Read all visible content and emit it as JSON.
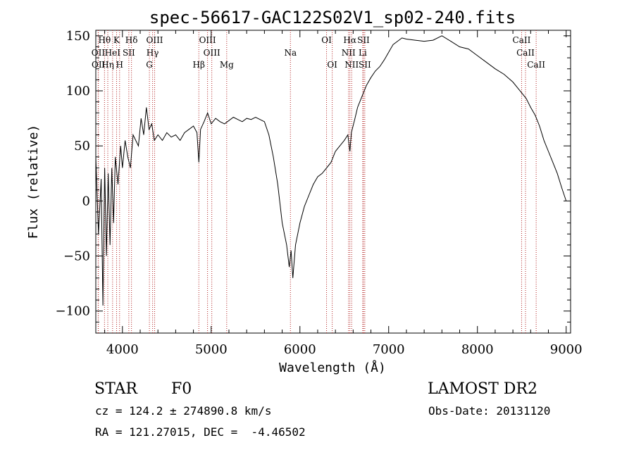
{
  "chart_data": {
    "type": "line",
    "title": "spec-56617-GAC122S02V1_sp02-240.fits",
    "xlabel": "Wavelength (Å)",
    "ylabel": "Flux (relative)",
    "xlim": [
      3700,
      9050
    ],
    "ylim": [
      -120,
      155
    ],
    "xticks": [
      4000,
      5000,
      6000,
      7000,
      8000,
      9000
    ],
    "yticks": [
      -100,
      -50,
      0,
      50,
      100,
      150
    ],
    "grid": false,
    "series": [
      {
        "color": "#000000",
        "points": [
          [
            3700,
            40
          ],
          [
            3730,
            -30
          ],
          [
            3760,
            20
          ],
          [
            3780,
            -95
          ],
          [
            3800,
            30
          ],
          [
            3820,
            -50
          ],
          [
            3840,
            25
          ],
          [
            3860,
            -40
          ],
          [
            3880,
            30
          ],
          [
            3900,
            -20
          ],
          [
            3920,
            40
          ],
          [
            3950,
            15
          ],
          [
            3980,
            50
          ],
          [
            4000,
            30
          ],
          [
            4030,
            55
          ],
          [
            4060,
            40
          ],
          [
            4090,
            30
          ],
          [
            4120,
            60
          ],
          [
            4150,
            55
          ],
          [
            4180,
            50
          ],
          [
            4210,
            75
          ],
          [
            4240,
            60
          ],
          [
            4270,
            85
          ],
          [
            4300,
            65
          ],
          [
            4330,
            70
          ],
          [
            4360,
            55
          ],
          [
            4400,
            60
          ],
          [
            4450,
            55
          ],
          [
            4500,
            62
          ],
          [
            4550,
            58
          ],
          [
            4600,
            60
          ],
          [
            4650,
            55
          ],
          [
            4700,
            62
          ],
          [
            4750,
            65
          ],
          [
            4800,
            68
          ],
          [
            4840,
            62
          ],
          [
            4861,
            35
          ],
          [
            4880,
            65
          ],
          [
            4920,
            72
          ],
          [
            4960,
            80
          ],
          [
            5000,
            70
          ],
          [
            5050,
            75
          ],
          [
            5100,
            72
          ],
          [
            5150,
            70
          ],
          [
            5200,
            73
          ],
          [
            5250,
            76
          ],
          [
            5300,
            74
          ],
          [
            5350,
            72
          ],
          [
            5400,
            75
          ],
          [
            5450,
            74
          ],
          [
            5500,
            76
          ],
          [
            5550,
            74
          ],
          [
            5600,
            72
          ],
          [
            5650,
            60
          ],
          [
            5700,
            40
          ],
          [
            5750,
            15
          ],
          [
            5800,
            -20
          ],
          [
            5850,
            -40
          ],
          [
            5880,
            -60
          ],
          [
            5900,
            -45
          ],
          [
            5920,
            -70
          ],
          [
            5950,
            -40
          ],
          [
            6000,
            -20
          ],
          [
            6050,
            -5
          ],
          [
            6100,
            5
          ],
          [
            6150,
            15
          ],
          [
            6200,
            22
          ],
          [
            6250,
            25
          ],
          [
            6300,
            30
          ],
          [
            6350,
            35
          ],
          [
            6400,
            45
          ],
          [
            6450,
            50
          ],
          [
            6500,
            55
          ],
          [
            6540,
            60
          ],
          [
            6563,
            45
          ],
          [
            6580,
            62
          ],
          [
            6620,
            75
          ],
          [
            6650,
            85
          ],
          [
            6700,
            95
          ],
          [
            6750,
            105
          ],
          [
            6800,
            112
          ],
          [
            6850,
            118
          ],
          [
            6900,
            122
          ],
          [
            6950,
            128
          ],
          [
            7000,
            135
          ],
          [
            7050,
            142
          ],
          [
            7100,
            145
          ],
          [
            7150,
            148
          ],
          [
            7200,
            147
          ],
          [
            7300,
            146
          ],
          [
            7400,
            145
          ],
          [
            7500,
            146
          ],
          [
            7600,
            150
          ],
          [
            7700,
            145
          ],
          [
            7800,
            140
          ],
          [
            7900,
            138
          ],
          [
            8000,
            132
          ],
          [
            8100,
            126
          ],
          [
            8200,
            120
          ],
          [
            8300,
            115
          ],
          [
            8400,
            108
          ],
          [
            8500,
            98
          ],
          [
            8550,
            93
          ],
          [
            8600,
            85
          ],
          [
            8650,
            78
          ],
          [
            8700,
            68
          ],
          [
            8750,
            55
          ],
          [
            8800,
            45
          ],
          [
            8850,
            35
          ],
          [
            8900,
            25
          ],
          [
            8950,
            12
          ],
          [
            9000,
            0
          ]
        ]
      }
    ],
    "line_color": "#b22222",
    "lines": [
      {
        "label": "Hθ",
        "wl": 3798,
        "row": 0
      },
      {
        "label": "K",
        "wl": 3934,
        "row": 0
      },
      {
        "label": "Hδ",
        "wl": 4102,
        "row": 0
      },
      {
        "label": "OIII",
        "wl": 4363,
        "row": 0
      },
      {
        "label": "OIII",
        "wl": 4959,
        "row": 0
      },
      {
        "label": "OI",
        "wl": 6300,
        "row": 0
      },
      {
        "label": "Hα",
        "wl": 6563,
        "row": 0
      },
      {
        "label": "SII",
        "wl": 6716,
        "row": 0
      },
      {
        "label": "CaII",
        "wl": 8498,
        "row": 0
      },
      {
        "label": "OII",
        "wl": 3727,
        "row": 1
      },
      {
        "label": "HeI",
        "wl": 3889,
        "row": 1
      },
      {
        "label": "SII",
        "wl": 4072,
        "row": 1
      },
      {
        "label": "Hγ",
        "wl": 4340,
        "row": 1
      },
      {
        "label": "OIII",
        "wl": 5007,
        "row": 1
      },
      {
        "label": "Na",
        "wl": 5893,
        "row": 1
      },
      {
        "label": "NII",
        "wl": 6548,
        "row": 1
      },
      {
        "label": "Li",
        "wl": 6708,
        "row": 1
      },
      {
        "label": "CaII",
        "wl": 8542,
        "row": 1
      },
      {
        "label": "OII",
        "wl": 3729,
        "row": 2
      },
      {
        "label": "Hη",
        "wl": 3835,
        "row": 2
      },
      {
        "label": "H",
        "wl": 3968,
        "row": 2
      },
      {
        "label": "G",
        "wl": 4304,
        "row": 2
      },
      {
        "label": "Hβ",
        "wl": 4861,
        "row": 2
      },
      {
        "label": "Mg",
        "wl": 5175,
        "row": 2
      },
      {
        "label": "OI",
        "wl": 6364,
        "row": 2
      },
      {
        "label": "NII",
        "wl": 6583,
        "row": 2
      },
      {
        "label": "SII",
        "wl": 6731,
        "row": 2
      },
      {
        "label": "CaII",
        "wl": 8662,
        "row": 2
      }
    ]
  },
  "info": {
    "object_class": "STAR",
    "subclass": "F0",
    "survey": "LAMOST DR2",
    "cz": "cz = 124.2 ± 274890.8 km/s",
    "obs_date": "Obs-Date: 20131120",
    "coords": "RA = 121.27015, DEC =  -4.46502"
  }
}
